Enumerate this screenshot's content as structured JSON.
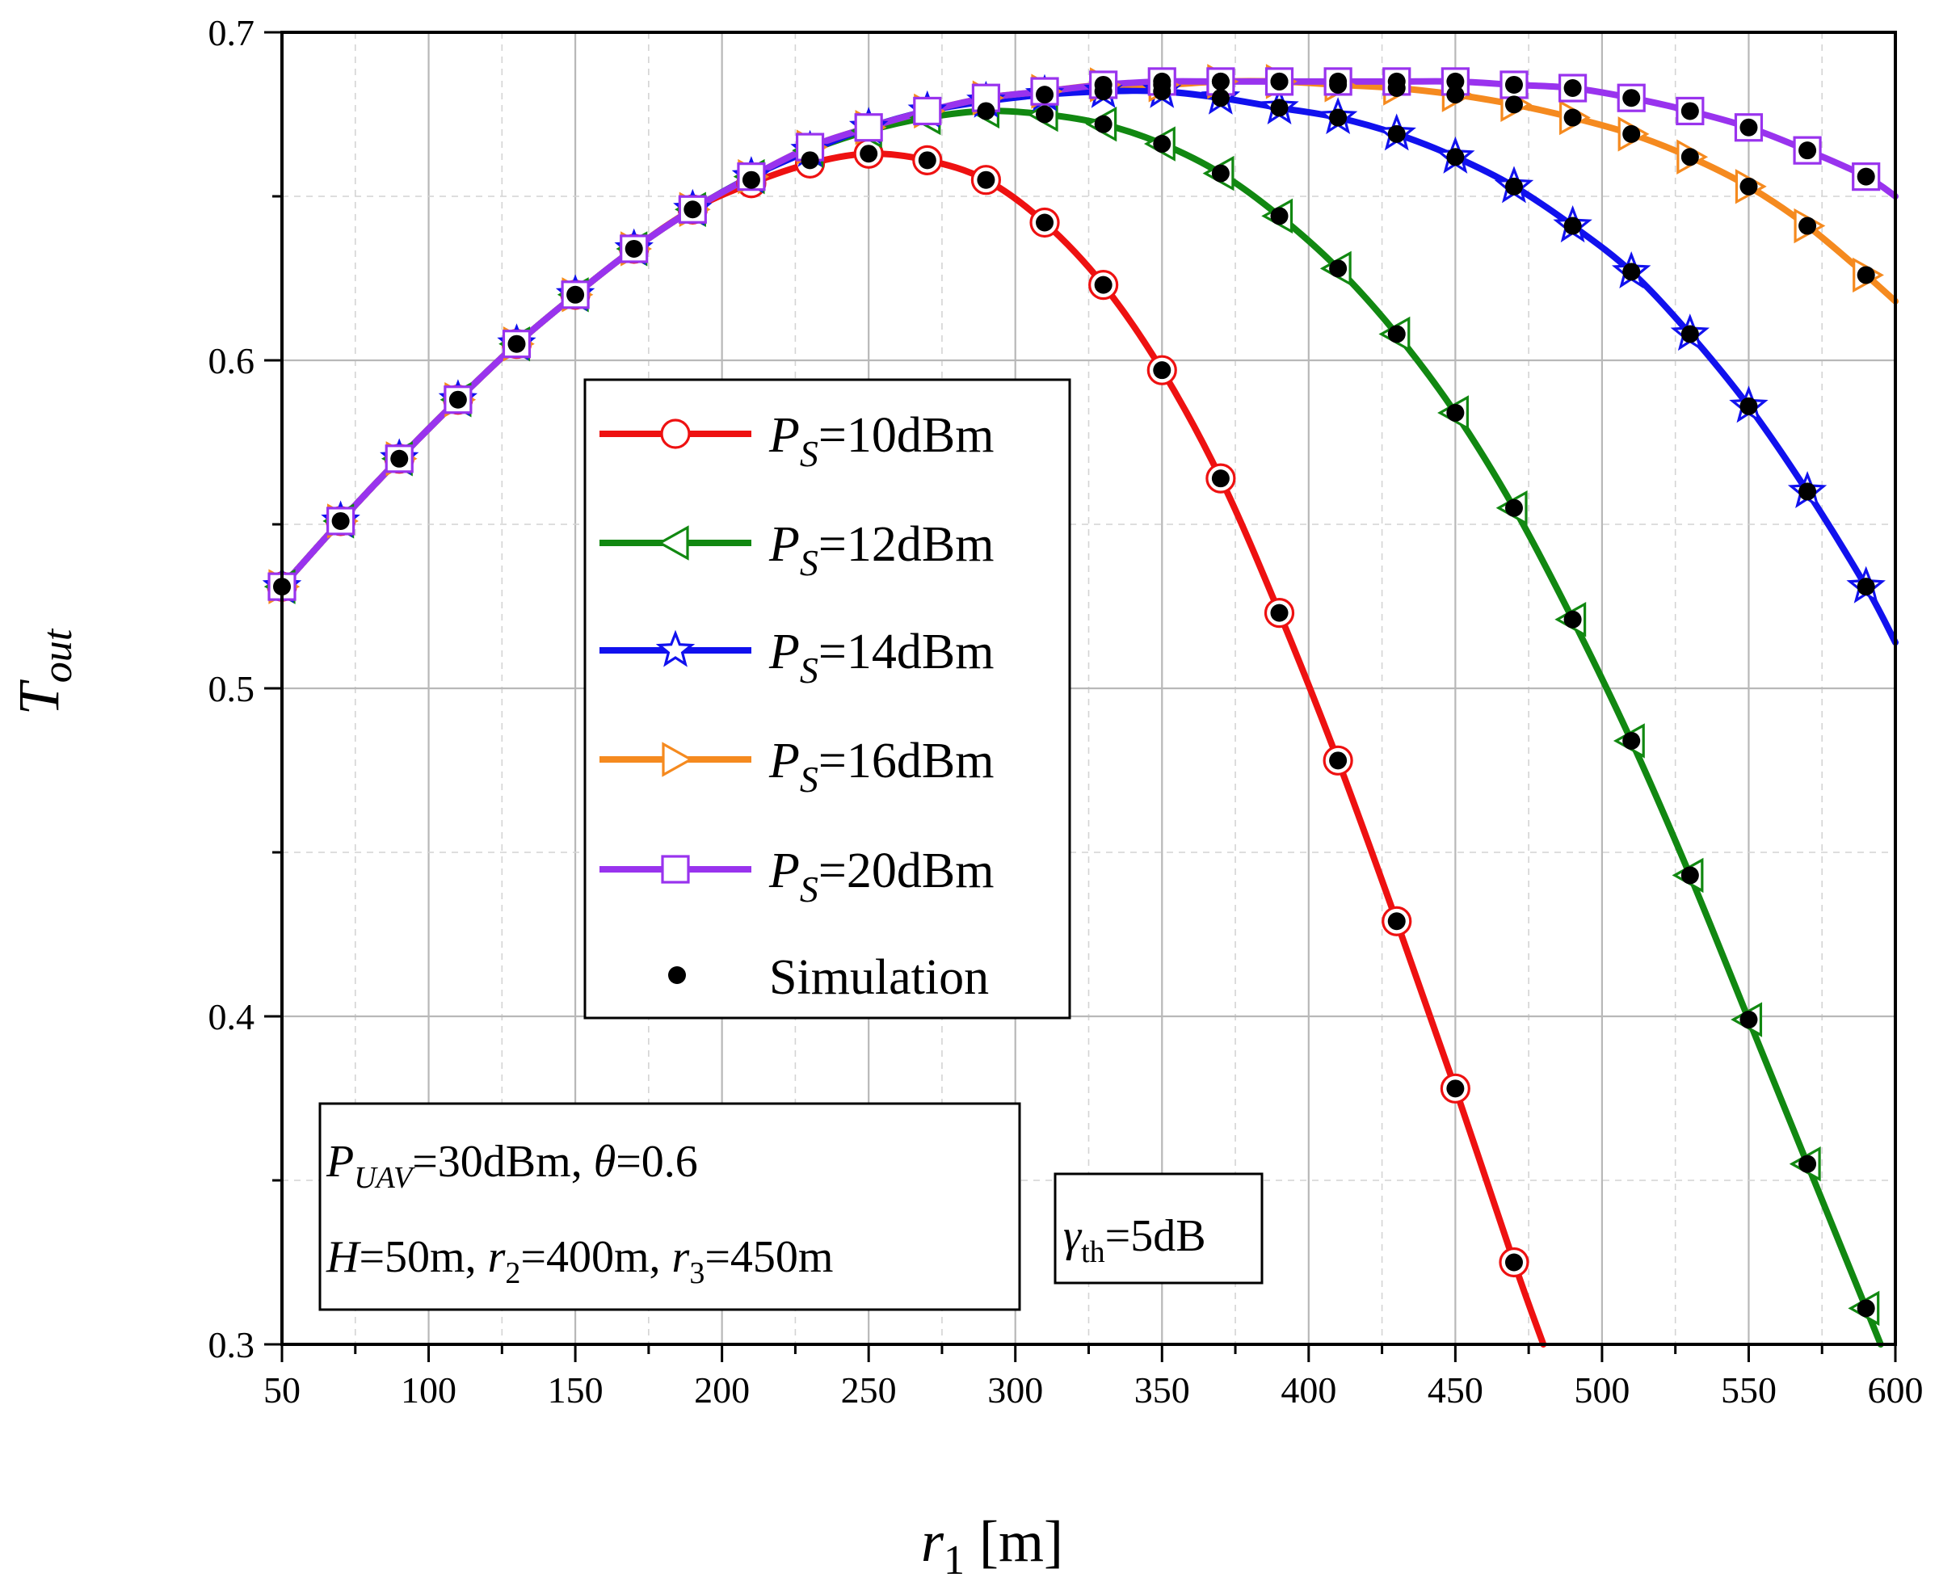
{
  "chart_data": {
    "type": "line",
    "title": "",
    "xlabel": {
      "var": "r",
      "sub": "1",
      "unit": " [m]"
    },
    "ylabel": {
      "var": "T",
      "sub": "out"
    },
    "xlim": [
      50,
      600
    ],
    "ylim": [
      0.3,
      0.7
    ],
    "xticks": [
      50,
      100,
      150,
      200,
      250,
      300,
      350,
      400,
      450,
      500,
      550,
      600
    ],
    "xtick_labels": [
      "50",
      "100",
      "150",
      "200",
      "250",
      "300",
      "350",
      "400",
      "450",
      "500",
      "550",
      "600"
    ],
    "yticks": [
      0.3,
      0.4,
      0.5,
      0.6,
      0.7
    ],
    "ytick_labels": [
      "0.3",
      "0.4",
      "0.5",
      "0.6",
      "0.7"
    ],
    "grid": true,
    "legend_position": "center-left",
    "marker_x": [
      50,
      70,
      90,
      110,
      130,
      150,
      170,
      190,
      210,
      230,
      250,
      270,
      290,
      310,
      330,
      350,
      370,
      390,
      410,
      430,
      450,
      470,
      490,
      510,
      530,
      550,
      570,
      590
    ],
    "series": [
      {
        "name": "P_S=10dBm",
        "label_pre": "P",
        "label_sub": "S",
        "label_post": "=10dBm",
        "color": "#ee1111",
        "marker": "circle",
        "x": [
          50,
          70,
          90,
          110,
          130,
          150,
          170,
          190,
          210,
          230,
          250,
          270,
          290,
          310,
          330,
          350,
          370,
          390,
          410,
          430,
          450,
          470,
          480
        ],
        "values": [
          0.531,
          0.551,
          0.57,
          0.588,
          0.605,
          0.62,
          0.634,
          0.646,
          0.654,
          0.66,
          0.663,
          0.661,
          0.655,
          0.642,
          0.623,
          0.597,
          0.564,
          0.523,
          0.478,
          0.429,
          0.378,
          0.325,
          0.3
        ]
      },
      {
        "name": "P_S=12dBm",
        "label_pre": "P",
        "label_sub": "S",
        "label_post": "=12dBm",
        "color": "#118811",
        "marker": "triangle-left",
        "x": [
          50,
          70,
          90,
          110,
          130,
          150,
          170,
          190,
          210,
          230,
          250,
          270,
          290,
          310,
          330,
          350,
          370,
          390,
          410,
          430,
          450,
          470,
          490,
          510,
          530,
          550,
          570,
          590,
          595
        ],
        "values": [
          0.531,
          0.551,
          0.57,
          0.588,
          0.605,
          0.62,
          0.634,
          0.646,
          0.656,
          0.664,
          0.67,
          0.674,
          0.676,
          0.675,
          0.672,
          0.666,
          0.657,
          0.644,
          0.628,
          0.608,
          0.584,
          0.555,
          0.521,
          0.484,
          0.443,
          0.399,
          0.355,
          0.311,
          0.3
        ]
      },
      {
        "name": "P_S=14dBm",
        "label_pre": "P",
        "label_sub": "S",
        "label_post": "=14dBm",
        "color": "#1111ee",
        "marker": "star",
        "x": [
          50,
          70,
          90,
          110,
          130,
          150,
          170,
          190,
          210,
          230,
          250,
          270,
          290,
          310,
          330,
          350,
          370,
          390,
          410,
          430,
          450,
          470,
          490,
          510,
          530,
          550,
          570,
          590,
          600
        ],
        "values": [
          0.531,
          0.551,
          0.57,
          0.588,
          0.605,
          0.62,
          0.634,
          0.646,
          0.656,
          0.664,
          0.671,
          0.676,
          0.679,
          0.681,
          0.682,
          0.682,
          0.68,
          0.677,
          0.674,
          0.669,
          0.662,
          0.653,
          0.641,
          0.627,
          0.608,
          0.586,
          0.56,
          0.531,
          0.514
        ]
      },
      {
        "name": "P_S=16dBm",
        "label_pre": "P",
        "label_sub": "S",
        "label_post": "=16dBm",
        "color": "#f58a1f",
        "marker": "triangle-right",
        "x": [
          50,
          70,
          90,
          110,
          130,
          150,
          170,
          190,
          210,
          230,
          250,
          270,
          290,
          310,
          330,
          350,
          370,
          390,
          410,
          430,
          450,
          470,
          490,
          510,
          530,
          550,
          570,
          590,
          600
        ],
        "values": [
          0.531,
          0.551,
          0.57,
          0.588,
          0.605,
          0.62,
          0.634,
          0.646,
          0.656,
          0.665,
          0.671,
          0.676,
          0.68,
          0.682,
          0.684,
          0.684,
          0.685,
          0.685,
          0.684,
          0.683,
          0.681,
          0.678,
          0.674,
          0.669,
          0.662,
          0.653,
          0.641,
          0.626,
          0.618
        ]
      },
      {
        "name": "P_S=20dBm",
        "label_pre": "P",
        "label_sub": "S",
        "label_post": "=20dBm",
        "color": "#9933ee",
        "marker": "square",
        "x": [
          50,
          70,
          90,
          110,
          130,
          150,
          170,
          190,
          210,
          230,
          250,
          270,
          290,
          310,
          330,
          350,
          370,
          390,
          410,
          430,
          450,
          470,
          490,
          510,
          530,
          550,
          570,
          590,
          600
        ],
        "values": [
          0.531,
          0.551,
          0.57,
          0.588,
          0.605,
          0.62,
          0.634,
          0.646,
          0.656,
          0.665,
          0.671,
          0.676,
          0.68,
          0.682,
          0.684,
          0.685,
          0.685,
          0.685,
          0.685,
          0.685,
          0.685,
          0.684,
          0.683,
          0.68,
          0.676,
          0.671,
          0.664,
          0.656,
          0.65
        ]
      }
    ],
    "simulation": {
      "name": "Simulation",
      "color": "#000000",
      "points": [
        [
          50,
          0.531
        ],
        [
          70,
          0.551
        ],
        [
          90,
          0.57
        ],
        [
          110,
          0.588
        ],
        [
          130,
          0.605
        ],
        [
          150,
          0.62
        ],
        [
          170,
          0.634
        ],
        [
          190,
          0.646
        ],
        [
          210,
          0.655
        ],
        [
          230,
          0.661
        ],
        [
          250,
          0.663
        ],
        [
          270,
          0.661
        ],
        [
          290,
          0.655
        ],
        [
          310,
          0.642
        ],
        [
          330,
          0.623
        ],
        [
          350,
          0.597
        ],
        [
          370,
          0.564
        ],
        [
          390,
          0.523
        ],
        [
          410,
          0.478
        ],
        [
          430,
          0.429
        ],
        [
          450,
          0.378
        ],
        [
          470,
          0.325
        ],
        [
          290,
          0.676
        ],
        [
          310,
          0.675
        ],
        [
          330,
          0.672
        ],
        [
          350,
          0.666
        ],
        [
          370,
          0.657
        ],
        [
          390,
          0.644
        ],
        [
          410,
          0.628
        ],
        [
          430,
          0.608
        ],
        [
          450,
          0.584
        ],
        [
          470,
          0.555
        ],
        [
          490,
          0.521
        ],
        [
          510,
          0.484
        ],
        [
          530,
          0.443
        ],
        [
          550,
          0.399
        ],
        [
          570,
          0.355
        ],
        [
          590,
          0.311
        ],
        [
          310,
          0.681
        ],
        [
          330,
          0.682
        ],
        [
          350,
          0.682
        ],
        [
          370,
          0.68
        ],
        [
          390,
          0.677
        ],
        [
          410,
          0.674
        ],
        [
          430,
          0.669
        ],
        [
          450,
          0.662
        ],
        [
          470,
          0.653
        ],
        [
          490,
          0.641
        ],
        [
          510,
          0.627
        ],
        [
          530,
          0.608
        ],
        [
          550,
          0.586
        ],
        [
          570,
          0.56
        ],
        [
          590,
          0.531
        ],
        [
          350,
          0.684
        ],
        [
          370,
          0.685
        ],
        [
          390,
          0.685
        ],
        [
          410,
          0.684
        ],
        [
          430,
          0.683
        ],
        [
          450,
          0.681
        ],
        [
          470,
          0.678
        ],
        [
          490,
          0.674
        ],
        [
          510,
          0.669
        ],
        [
          530,
          0.662
        ],
        [
          550,
          0.653
        ],
        [
          570,
          0.641
        ],
        [
          590,
          0.626
        ],
        [
          330,
          0.684
        ],
        [
          350,
          0.685
        ],
        [
          370,
          0.685
        ],
        [
          390,
          0.685
        ],
        [
          410,
          0.685
        ],
        [
          430,
          0.685
        ],
        [
          450,
          0.685
        ],
        [
          470,
          0.684
        ],
        [
          490,
          0.683
        ],
        [
          510,
          0.68
        ],
        [
          530,
          0.676
        ],
        [
          550,
          0.671
        ],
        [
          570,
          0.664
        ],
        [
          590,
          0.656
        ]
      ]
    },
    "annotations": {
      "box1_line1": {
        "P": "P",
        "UAV": "UAV",
        "val": "=30dBm, ",
        "theta": "θ",
        "theta_val": "=0.6"
      },
      "box1_line2": {
        "H": "H",
        "H_val": "=50m, ",
        "r": "r",
        "sub2": "2",
        "r2_val": "=400m, ",
        "sub3": "3",
        "r3_val": "=450m"
      },
      "box2": {
        "gamma": "γ",
        "sub": "th",
        "val": "=5dB"
      }
    }
  }
}
